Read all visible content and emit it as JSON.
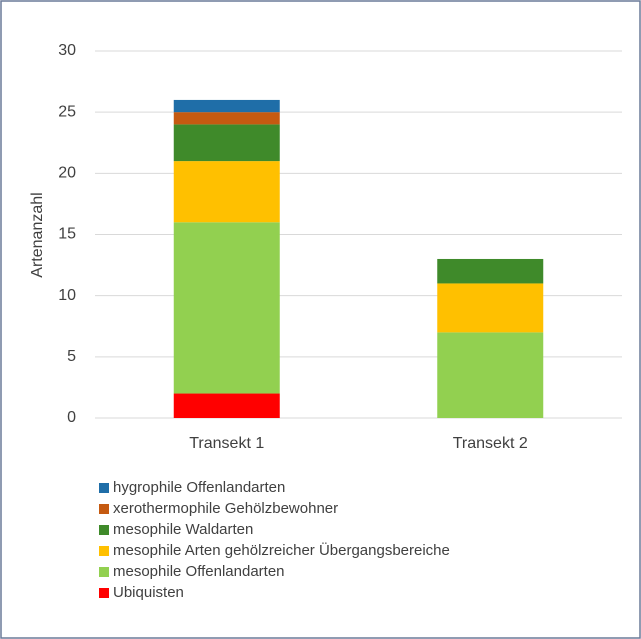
{
  "chart_data": {
    "type": "stacked_bar",
    "y_label": "Artenanzahl",
    "categories": [
      "Transekt 1",
      "Transekt 2"
    ],
    "series": [
      {
        "name": "Ubiquisten",
        "color": "#ff0000",
        "values": [
          2,
          0
        ]
      },
      {
        "name": "mesophile Offenlandarten",
        "color": "#92d050",
        "values": [
          14,
          7
        ]
      },
      {
        "name": "mesophile Arten gehölzreicher Übergangsbereiche",
        "color": "#ffc000",
        "values": [
          5,
          4
        ]
      },
      {
        "name": "mesophile Waldarten",
        "color": "#3f8a2a",
        "values": [
          3,
          2
        ]
      },
      {
        "name": "xerothermophile Gehölzbewohner",
        "color": "#c55a11",
        "values": [
          1,
          0
        ]
      },
      {
        "name": "hygrophile Offenlandarten",
        "color": "#1f6ea8",
        "values": [
          1,
          0
        ]
      }
    ],
    "ylim": [
      0,
      30
    ],
    "yticks": [
      0,
      5,
      10,
      15,
      20,
      25,
      30
    ],
    "grid": true,
    "legend": "bottom"
  }
}
